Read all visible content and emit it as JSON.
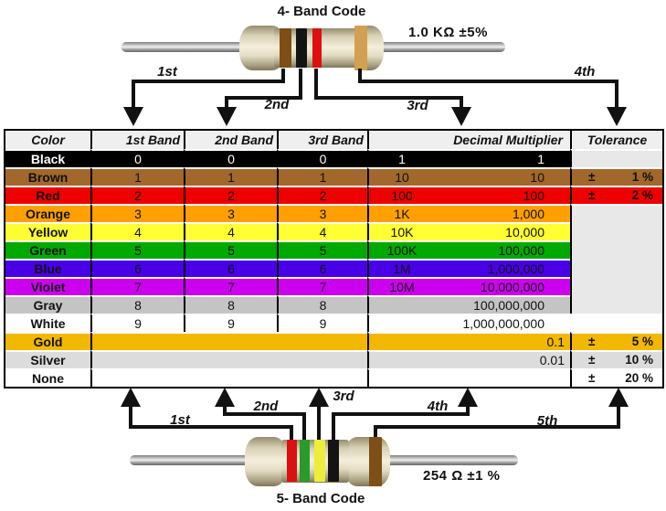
{
  "titles": {
    "four_band": "4- Band Code",
    "five_band": "5- Band Code"
  },
  "resistors": {
    "four_band": {
      "value_label": "1.0 KΩ  ±5%",
      "bands": [
        "brown",
        "black",
        "red",
        "gold"
      ]
    },
    "five_band": {
      "value_label": "254 Ω  ±1 %",
      "bands": [
        "red",
        "green",
        "yellow",
        "black",
        "brown"
      ]
    }
  },
  "arrows": {
    "top": [
      "1st",
      "2nd",
      "3rd",
      "4th"
    ],
    "bottom": [
      "1st",
      "2nd",
      "3rd",
      "4th",
      "5th"
    ]
  },
  "band_colors": {
    "brown": "#7d4e16",
    "black": "#141414",
    "red": "#dc1010",
    "gold": "#d2a050",
    "green": "#2a9a2a",
    "yellow": "#eded3a"
  },
  "table": {
    "headers": [
      "Color",
      "1st Band",
      "2nd Band",
      "3rd Band",
      "Decimal Multiplier",
      "Tolerance"
    ],
    "header_bg": "#efefef",
    "border_color": "#000000",
    "divider_color": "#ffffff",
    "empty_tolerance_bg": "#e8e8e8",
    "rows": [
      {
        "color": "Black",
        "bg": "#000000",
        "fg": "#ffffff",
        "bands": [
          "0",
          "0",
          "0"
        ],
        "mult": {
          "prefix": "1",
          "value": "1"
        },
        "tol": {
          "kind": "empty",
          "bg": "#e8e8e8"
        }
      },
      {
        "color": "Brown",
        "bg": "#a2672a",
        "bands": [
          "1",
          "1",
          "1"
        ],
        "mult": {
          "prefix": "10",
          "value": "10"
        },
        "tol": {
          "kind": "value",
          "sign": "±",
          "text": "1 %",
          "bg": "#a2672a"
        }
      },
      {
        "color": "Red",
        "bg": "#ee0000",
        "bands": [
          "2",
          "2",
          "2"
        ],
        "mult": {
          "prefix": "100",
          "value": "100"
        },
        "tol": {
          "kind": "value",
          "sign": "±",
          "text": "2 %",
          "bg": "#ee0000"
        }
      },
      {
        "color": "Orange",
        "bg": "#ffa000",
        "bands": [
          "3",
          "3",
          "3"
        ],
        "mult": {
          "prefix": "1K",
          "value": "1,000"
        },
        "tol": {
          "kind": "merged",
          "span": 6,
          "bg": "#e8e8e8"
        }
      },
      {
        "color": "Yellow",
        "bg": "#ffff33",
        "bands": [
          "4",
          "4",
          "4"
        ],
        "mult": {
          "prefix": "10K",
          "value": "10,000"
        },
        "tol": {
          "kind": "skip"
        }
      },
      {
        "color": "Green",
        "bg": "#00a900",
        "bands": [
          "5",
          "5",
          "5"
        ],
        "mult": {
          "prefix": "100K",
          "value": "100,000"
        },
        "tol": {
          "kind": "skip"
        }
      },
      {
        "color": "Blue",
        "bg": "#4a00e6",
        "bands": [
          "6",
          "6",
          "6"
        ],
        "mult": {
          "prefix": "1M",
          "value": "1,000,000"
        },
        "tol": {
          "kind": "skip"
        }
      },
      {
        "color": "Violet",
        "bg": "#cc00ee",
        "bands": [
          "7",
          "7",
          "7"
        ],
        "mult": {
          "prefix": "10M",
          "value": "10,000,000"
        },
        "tol": {
          "kind": "skip"
        }
      },
      {
        "color": "Gray",
        "bg": "#c4c4c4",
        "bands": [
          "8",
          "8",
          "8"
        ],
        "mult": {
          "prefix": "",
          "value": "100,000,000"
        },
        "tol": {
          "kind": "skip"
        }
      },
      {
        "color": "White",
        "bg": "#ffffff",
        "bands": [
          "9",
          "9",
          "9"
        ],
        "mult": {
          "prefix": "",
          "value": "1,000,000,000"
        },
        "tol": {
          "kind": "skip"
        }
      },
      {
        "color": "Gold",
        "bg": "#f2b700",
        "bands": null,
        "mult": {
          "prefix": "",
          "value": "0.1",
          "tight": true
        },
        "tol": {
          "kind": "value",
          "sign": "±",
          "text": "5 %",
          "bg": "#f2b700"
        }
      },
      {
        "color": "Silver",
        "bg": "#dcdcdc",
        "bands": null,
        "mult": {
          "prefix": "",
          "value": "0.01",
          "tight": true
        },
        "tol": {
          "kind": "value",
          "sign": "±",
          "text": "10 %",
          "bg": "#dcdcdc"
        }
      },
      {
        "color": "None",
        "bg": "#ffffff",
        "bands": null,
        "mult": {
          "prefix": "",
          "value": ""
        },
        "tol": {
          "kind": "value",
          "sign": "±",
          "text": "20 %",
          "bg": "#ffffff"
        }
      }
    ]
  }
}
